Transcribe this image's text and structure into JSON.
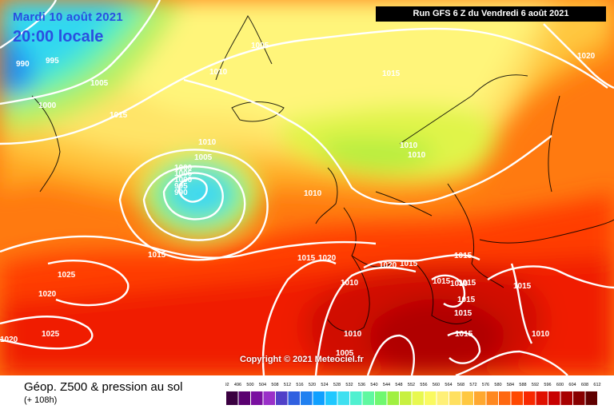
{
  "header": {
    "date": "Mardi 10 août 2021",
    "local_time": "20:00 locale",
    "run_info": "Run GFS 6 Z du Vendredi 6 août 2021"
  },
  "footer": {
    "field_title": "Géop. Z500 & pression au sol",
    "lead_time": "(+ 108h)",
    "copyright": "Copyright © 2021 Meteociel.fr"
  },
  "isobar_labels": [
    "1000",
    "990",
    "995",
    "1005",
    "1000",
    "1015",
    "1010",
    "1005",
    "1010",
    "1005",
    "1015",
    "1020",
    "1010",
    "1005",
    "1000",
    "995",
    "990",
    "1010",
    "1010",
    "1015",
    "1020",
    "1015",
    "1015",
    "1025",
    "1020",
    "1025",
    "1020",
    "1010",
    "1015",
    "1015",
    "1015",
    "1015",
    "1010",
    "1015",
    "1010",
    "1015",
    "1005",
    "1010",
    "1015",
    "1020"
  ],
  "colorbar": {
    "values": [
      "492",
      "496",
      "500",
      "504",
      "508",
      "512",
      "516",
      "520",
      "524",
      "528",
      "532",
      "536",
      "540",
      "544",
      "548",
      "552",
      "556",
      "560",
      "564",
      "568",
      "572",
      "576",
      "580",
      "584",
      "588",
      "592",
      "596",
      "600",
      "604",
      "608",
      "612"
    ],
    "colors": [
      "#3a0040",
      "#5a0070",
      "#7a10a0",
      "#9a30c8",
      "#5040c8",
      "#3060e0",
      "#2080f0",
      "#10a0ff",
      "#20c8ff",
      "#40e0f0",
      "#50f0d0",
      "#60f8a0",
      "#70f870",
      "#a0f040",
      "#c8f040",
      "#e8f850",
      "#fafa60",
      "#fff078",
      "#ffe060",
      "#ffc840",
      "#ffa830",
      "#ff8820",
      "#ff6810",
      "#ff4800",
      "#f82800",
      "#e01000",
      "#c80000",
      "#a80000",
      "#880000",
      "#600000"
    ]
  }
}
